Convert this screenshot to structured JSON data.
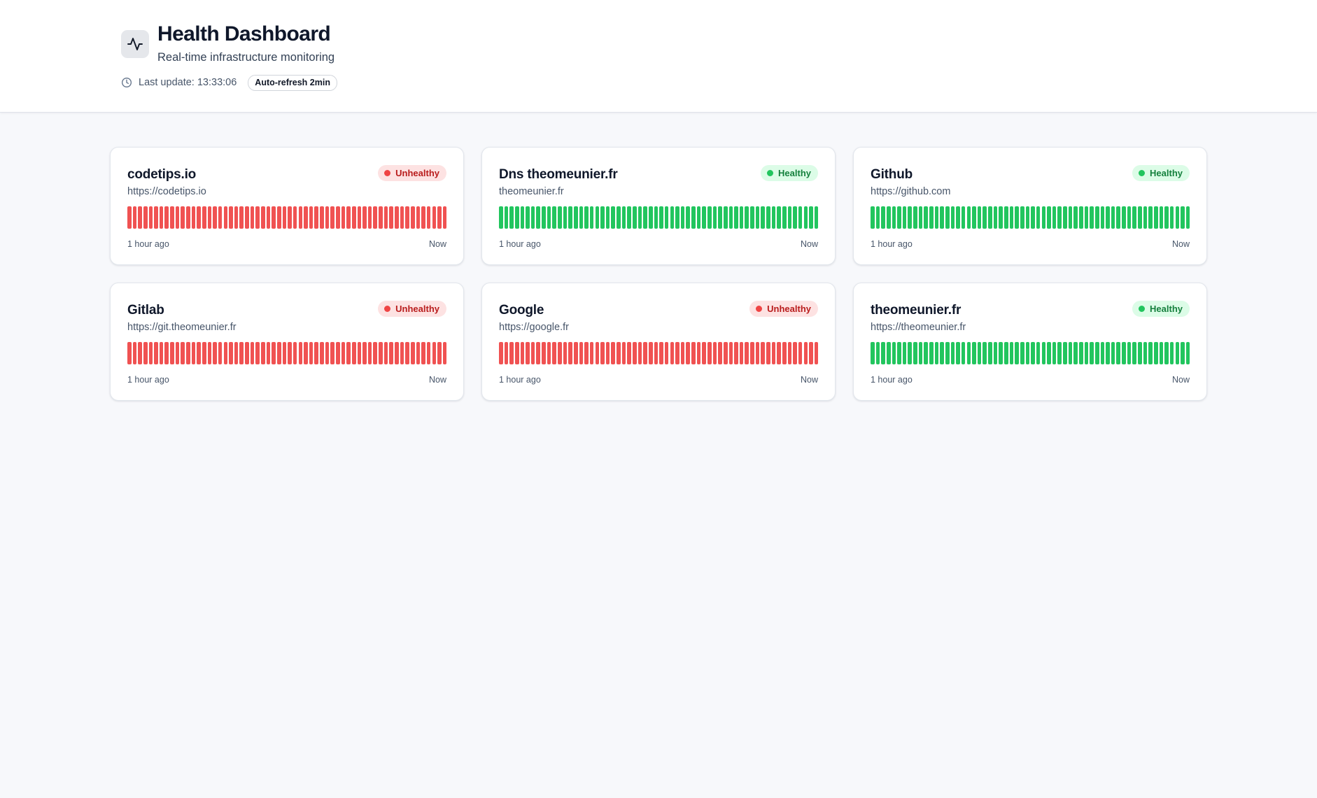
{
  "header": {
    "title": "Health Dashboard",
    "subtitle": "Real-time infrastructure monitoring",
    "logo_icon": "activity-icon",
    "clock_icon": "clock-icon",
    "last_update": "Last update: 13:33:06",
    "refresh_badge": "Auto-refresh 2min"
  },
  "colors": {
    "healthy": "#22c55e",
    "unhealthy": "#f05252",
    "background": "#f7f8fb"
  },
  "services": [
    {
      "name": "codetips.io",
      "url": "https://codetips.io",
      "status": "Unhealthy",
      "status_key": "unhealthy",
      "history": [
        "down",
        "down",
        "down",
        "down",
        "down",
        "down",
        "down",
        "down",
        "down",
        "down",
        "down",
        "down",
        "down",
        "down",
        "down",
        "down",
        "down",
        "down",
        "down",
        "down",
        "down",
        "down",
        "down",
        "down",
        "down",
        "down",
        "down",
        "down",
        "down",
        "down",
        "down",
        "down",
        "down",
        "down",
        "down",
        "down",
        "down",
        "down",
        "down",
        "down",
        "down",
        "down",
        "down",
        "down",
        "down",
        "down",
        "down",
        "down",
        "down",
        "down",
        "down",
        "down",
        "down",
        "down",
        "down",
        "down",
        "down",
        "down",
        "down",
        "down"
      ],
      "time_start": "1 hour ago",
      "time_end": "Now"
    },
    {
      "name": "Dns theomeunier.fr",
      "url": "theomeunier.fr",
      "status": "Healthy",
      "status_key": "healthy",
      "history": [
        "up",
        "up",
        "up",
        "up",
        "up",
        "up",
        "up",
        "up",
        "up",
        "up",
        "up",
        "up",
        "up",
        "up",
        "up",
        "up",
        "up",
        "up",
        "up",
        "up",
        "up",
        "up",
        "up",
        "up",
        "up",
        "up",
        "up",
        "up",
        "up",
        "up",
        "up",
        "up",
        "up",
        "up",
        "up",
        "up",
        "up",
        "up",
        "up",
        "up",
        "up",
        "up",
        "up",
        "up",
        "up",
        "up",
        "up",
        "up",
        "up",
        "up",
        "up",
        "up",
        "up",
        "up",
        "up",
        "up",
        "up",
        "up",
        "up",
        "up"
      ],
      "time_start": "1 hour ago",
      "time_end": "Now"
    },
    {
      "name": "Github",
      "url": "https://github.com",
      "status": "Healthy",
      "status_key": "healthy",
      "history": [
        "up",
        "up",
        "up",
        "up",
        "up",
        "up",
        "up",
        "up",
        "up",
        "up",
        "up",
        "up",
        "up",
        "up",
        "up",
        "up",
        "up",
        "up",
        "up",
        "up",
        "up",
        "up",
        "up",
        "up",
        "up",
        "up",
        "up",
        "up",
        "up",
        "up",
        "up",
        "up",
        "up",
        "up",
        "up",
        "up",
        "up",
        "up",
        "up",
        "up",
        "up",
        "up",
        "up",
        "up",
        "up",
        "up",
        "up",
        "up",
        "up",
        "up",
        "up",
        "up",
        "up",
        "up",
        "up",
        "up",
        "up",
        "up",
        "up",
        "up"
      ],
      "time_start": "1 hour ago",
      "time_end": "Now"
    },
    {
      "name": "Gitlab",
      "url": "https://git.theomeunier.fr",
      "status": "Unhealthy",
      "status_key": "unhealthy",
      "history": [
        "down",
        "down",
        "down",
        "down",
        "down",
        "down",
        "down",
        "down",
        "down",
        "down",
        "down",
        "down",
        "down",
        "down",
        "down",
        "down",
        "down",
        "down",
        "down",
        "down",
        "down",
        "down",
        "down",
        "down",
        "down",
        "down",
        "down",
        "down",
        "down",
        "down",
        "down",
        "down",
        "down",
        "down",
        "down",
        "down",
        "down",
        "down",
        "down",
        "down",
        "down",
        "down",
        "down",
        "down",
        "down",
        "down",
        "down",
        "down",
        "down",
        "down",
        "down",
        "down",
        "down",
        "down",
        "down",
        "down",
        "down",
        "down",
        "down",
        "down"
      ],
      "time_start": "1 hour ago",
      "time_end": "Now"
    },
    {
      "name": "Google",
      "url": "https://google.fr",
      "status": "Unhealthy",
      "status_key": "unhealthy",
      "history": [
        "down",
        "down",
        "down",
        "down",
        "down",
        "down",
        "down",
        "down",
        "down",
        "down",
        "down",
        "down",
        "down",
        "down",
        "down",
        "down",
        "down",
        "down",
        "down",
        "down",
        "down",
        "down",
        "down",
        "down",
        "down",
        "down",
        "down",
        "down",
        "down",
        "down",
        "down",
        "down",
        "down",
        "down",
        "down",
        "down",
        "down",
        "down",
        "down",
        "down",
        "down",
        "down",
        "down",
        "down",
        "down",
        "down",
        "down",
        "down",
        "down",
        "down",
        "down",
        "down",
        "down",
        "down",
        "down",
        "down",
        "down",
        "down",
        "down",
        "down"
      ],
      "time_start": "1 hour ago",
      "time_end": "Now"
    },
    {
      "name": "theomeunier.fr",
      "url": "https://theomeunier.fr",
      "status": "Healthy",
      "status_key": "healthy",
      "history": [
        "up",
        "up",
        "up",
        "up",
        "up",
        "up",
        "up",
        "up",
        "up",
        "up",
        "up",
        "up",
        "up",
        "up",
        "up",
        "up",
        "up",
        "up",
        "up",
        "up",
        "up",
        "up",
        "up",
        "up",
        "up",
        "up",
        "up",
        "up",
        "up",
        "up",
        "up",
        "up",
        "up",
        "up",
        "up",
        "up",
        "up",
        "up",
        "up",
        "up",
        "up",
        "up",
        "up",
        "up",
        "up",
        "up",
        "up",
        "up",
        "up",
        "up",
        "up",
        "up",
        "up",
        "up",
        "up",
        "up",
        "up",
        "up",
        "up",
        "up"
      ],
      "time_start": "1 hour ago",
      "time_end": "Now"
    }
  ]
}
